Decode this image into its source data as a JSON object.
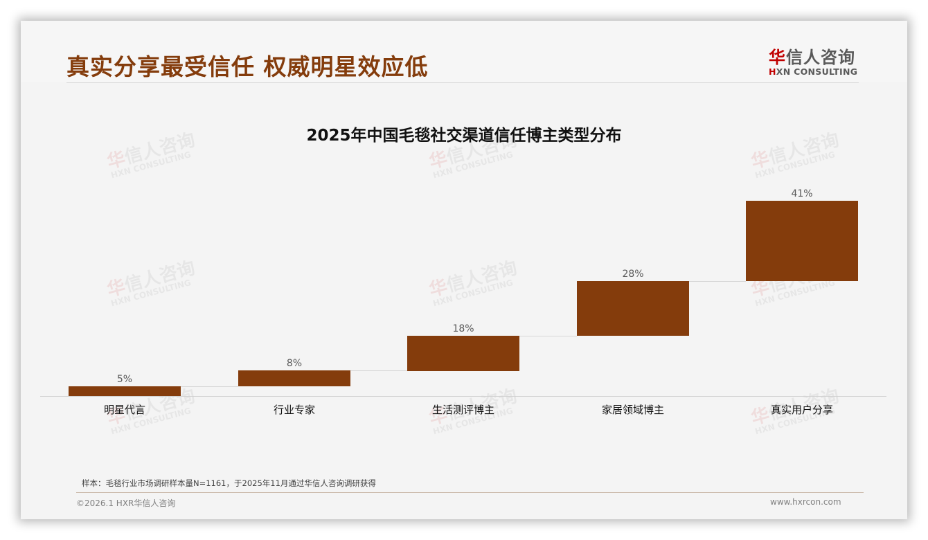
{
  "slide": {
    "title": "真实分享最受信任 权威明星效应低",
    "logo": {
      "cn_accent": "华",
      "cn_rest": "信人咨询",
      "en_accent": "H",
      "en_rest": "XN CONSULTING"
    },
    "watermark": {
      "cn_accent": "华",
      "cn_rest": "信人咨询",
      "en": "HXN CONSULTING"
    },
    "note": "样本：毛毯行业市场调研样本量N=1161，于2025年11月通过华信人咨询调研获得",
    "footer_left": "©2026.1 HXR华信人咨询",
    "footer_right": "www.hxrcon.com",
    "colors": {
      "title": "#843c0c",
      "bar": "#843c0c",
      "logo_accent": "#c00000"
    }
  },
  "chart_data": {
    "type": "bar",
    "subtype": "waterfall",
    "title": "2025年中国毛毯社交渠道信任博主类型分布",
    "categories": [
      "明星代言",
      "行业专家",
      "生活测评博主",
      "家居领域博主",
      "真实用户分享"
    ],
    "values": [
      5,
      8,
      18,
      28,
      41
    ],
    "labels": [
      "5%",
      "8%",
      "18%",
      "28%",
      "41%"
    ],
    "cumulative_start": [
      0,
      5,
      13,
      31,
      59
    ],
    "xlabel": "",
    "ylabel": "",
    "ylim": [
      0,
      100
    ],
    "grid": false,
    "legend": "none",
    "unit": "%"
  }
}
